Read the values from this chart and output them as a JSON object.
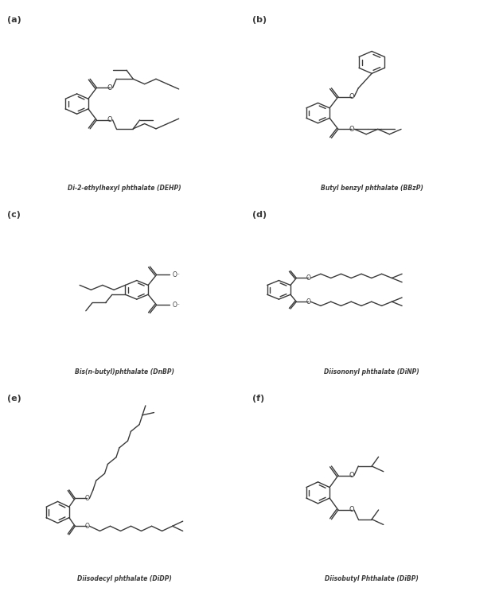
{
  "bg_color": "#ffffff",
  "line_color": "#3a3a3a",
  "panel_labels": [
    "(a)",
    "(b)",
    "(c)",
    "(d)",
    "(e)",
    "(f)"
  ],
  "captions": [
    "Di-2-ethylhexyl phthalate (DEHP)",
    "Butyl benzyl phthalate (BBzP)",
    "Bis(n-butyl)phthalate (DnBP)",
    "Diisononyl phthalate (DiNP)",
    "Diisodecyl phthalate (DiDP)",
    "Diisobutyl Phthalate (DiBP)"
  ],
  "lw": 1.0,
  "ring_r": 0.055,
  "figsize": [
    6.27,
    7.68
  ],
  "dpi": 100
}
